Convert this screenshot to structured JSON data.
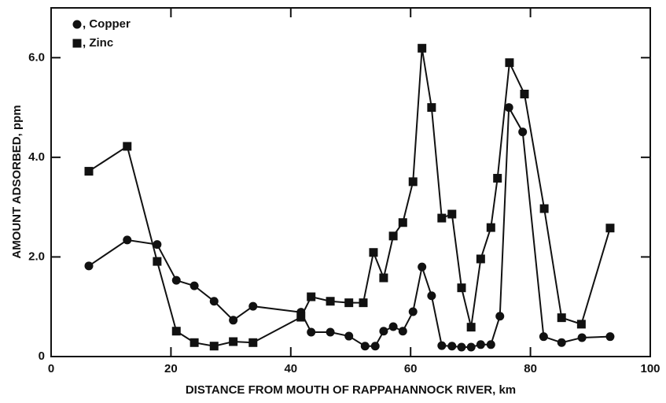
{
  "chart_data": {
    "type": "line",
    "x_label": "DISTANCE FROM MOUTH OF RAPPAHANNOCK RIVER, km",
    "y_label": "AMOUNT ADSORBED, ppm",
    "xlim": [
      0,
      100
    ],
    "ylim": [
      0,
      7
    ],
    "xticks": [
      0,
      20,
      40,
      60,
      80,
      100
    ],
    "yticks": [
      0,
      {
        "value": 2,
        "label": "2.0"
      },
      {
        "value": 4,
        "label": "4.0"
      },
      {
        "value": 6,
        "label": "6.0"
      }
    ],
    "legend": "upper left",
    "series": [
      {
        "name": ", Copper",
        "marker": "circle",
        "color": "#111111",
        "x": [
          6.3,
          12.7,
          17.7,
          20.9,
          23.9,
          27.2,
          30.4,
          33.7,
          41.7,
          43.4,
          46.6,
          49.7,
          52.4,
          54.1,
          55.5,
          57.1,
          58.7,
          60.4,
          61.9,
          63.5,
          65.2,
          66.9,
          68.5,
          70.1,
          71.7,
          73.4,
          74.9,
          76.4,
          78.7,
          82.2,
          85.2,
          88.6,
          93.3
        ],
        "values": [
          1.82,
          2.34,
          2.25,
          1.53,
          1.42,
          1.11,
          0.73,
          1.01,
          0.89,
          0.49,
          0.49,
          0.41,
          0.21,
          0.21,
          0.51,
          0.6,
          0.51,
          0.9,
          1.8,
          1.22,
          0.22,
          0.21,
          0.19,
          0.19,
          0.24,
          0.24,
          0.81,
          5.0,
          4.51,
          0.4,
          0.28,
          0.38,
          0.4
        ]
      },
      {
        "name": ", Zinc",
        "marker": "square",
        "color": "#111111",
        "x": [
          6.3,
          12.7,
          17.7,
          20.9,
          23.9,
          27.2,
          30.4,
          33.7,
          41.7,
          43.4,
          46.6,
          49.7,
          52.1,
          53.8,
          55.5,
          57.1,
          58.7,
          60.4,
          61.9,
          63.5,
          65.2,
          66.9,
          68.5,
          70.1,
          71.7,
          73.4,
          74.5,
          76.5,
          79.0,
          82.3,
          85.2,
          88.5,
          93.3
        ],
        "values": [
          3.72,
          4.22,
          1.91,
          0.51,
          0.28,
          0.21,
          0.3,
          0.28,
          0.79,
          1.2,
          1.11,
          1.08,
          1.08,
          2.09,
          1.58,
          2.42,
          2.69,
          3.51,
          6.19,
          5.0,
          2.78,
          2.86,
          1.38,
          0.59,
          1.96,
          2.59,
          3.58,
          5.9,
          5.27,
          2.97,
          0.78,
          0.65,
          2.58
        ]
      }
    ]
  }
}
